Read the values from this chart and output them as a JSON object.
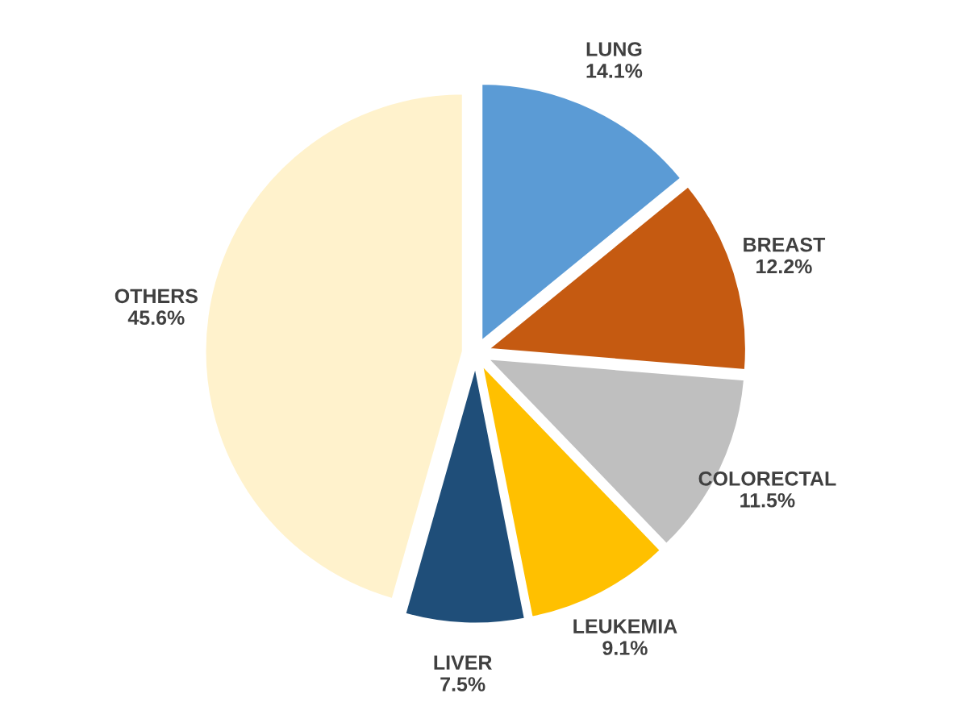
{
  "chart_data": {
    "type": "pie",
    "categories": [
      "LUNG",
      "BREAST",
      "COLORECTAL",
      "LEUKEMIA",
      "LIVER",
      "OTHERS"
    ],
    "values": [
      14.1,
      12.2,
      11.5,
      9.1,
      7.5,
      45.6
    ],
    "value_labels": [
      "14.1%",
      "12.2%",
      "11.5%",
      "9.1%",
      "7.5%",
      "45.6%"
    ],
    "colors": [
      "#5b9bd5",
      "#c55a11",
      "#bfbfbf",
      "#ffc000",
      "#1f4e79",
      "#fff2cc"
    ],
    "legend": false
  }
}
